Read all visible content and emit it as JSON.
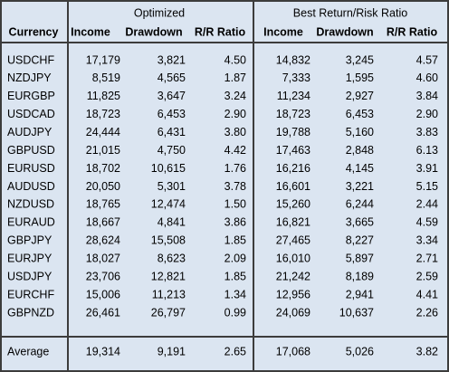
{
  "table": {
    "groups": [
      "Optimized",
      "Best Return/Risk Ratio"
    ],
    "columns": [
      "Currency",
      "Income",
      "Drawdown",
      "R/R Ratio",
      "Income",
      "Drawdown",
      "R/R Ratio"
    ],
    "rows": [
      [
        "USDCHF",
        "17,179",
        "3,821",
        "4.50",
        "14,832",
        "3,245",
        "4.57"
      ],
      [
        "NZDJPY",
        "8,519",
        "4,565",
        "1.87",
        "7,333",
        "1,595",
        "4.60"
      ],
      [
        "EURGBP",
        "11,825",
        "3,647",
        "3.24",
        "11,234",
        "2,927",
        "3.84"
      ],
      [
        "USDCAD",
        "18,723",
        "6,453",
        "2.90",
        "18,723",
        "6,453",
        "2.90"
      ],
      [
        "AUDJPY",
        "24,444",
        "6,431",
        "3.80",
        "19,788",
        "5,160",
        "3.83"
      ],
      [
        "GBPUSD",
        "21,015",
        "4,750",
        "4.42",
        "17,463",
        "2,848",
        "6.13"
      ],
      [
        "EURUSD",
        "18,702",
        "10,615",
        "1.76",
        "16,216",
        "4,145",
        "3.91"
      ],
      [
        "AUDUSD",
        "20,050",
        "5,301",
        "3.78",
        "16,601",
        "3,221",
        "5.15"
      ],
      [
        "NZDUSD",
        "18,765",
        "12,474",
        "1.50",
        "15,260",
        "6,244",
        "2.44"
      ],
      [
        "EURAUD",
        "18,667",
        "4,841",
        "3.86",
        "16,821",
        "3,665",
        "4.59"
      ],
      [
        "GBPJPY",
        "28,624",
        "15,508",
        "1.85",
        "27,465",
        "8,227",
        "3.34"
      ],
      [
        "EURJPY",
        "18,027",
        "8,623",
        "2.09",
        "16,010",
        "5,897",
        "2.71"
      ],
      [
        "USDJPY",
        "23,706",
        "12,821",
        "1.85",
        "21,242",
        "8,189",
        "2.59"
      ],
      [
        "EURCHF",
        "15,006",
        "11,213",
        "1.34",
        "12,956",
        "2,941",
        "4.41"
      ],
      [
        "GBPNZD",
        "26,461",
        "26,797",
        "0.99",
        "24,069",
        "10,637",
        "2.26"
      ]
    ],
    "average": [
      "Average",
      "19,314",
      "9,191",
      "2.65",
      "17,068",
      "5,026",
      "3.82"
    ]
  }
}
